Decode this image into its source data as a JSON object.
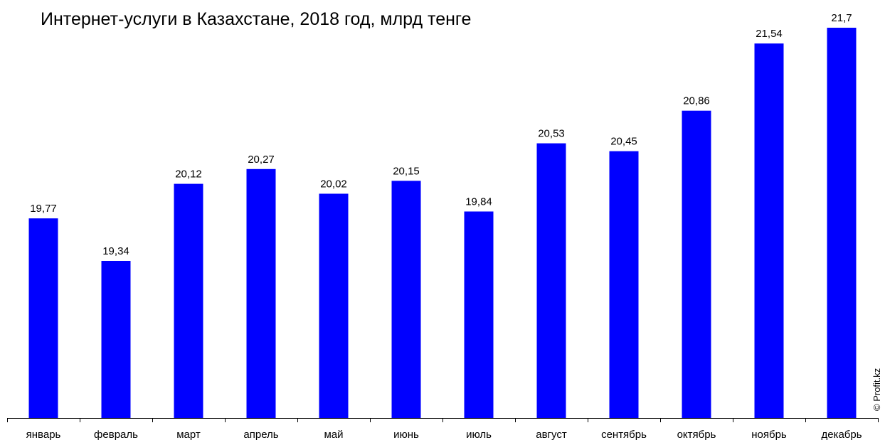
{
  "chart_data": {
    "type": "bar",
    "title": "Интернет-услуги в Казахстане, 2018 год, млрд тенге",
    "categories": [
      "январь",
      "февраль",
      "март",
      "апрель",
      "май",
      "июнь",
      "июль",
      "август",
      "сентябрь",
      "октябрь",
      "ноябрь",
      "декабрь"
    ],
    "values": [
      19.77,
      19.34,
      20.12,
      20.27,
      20.02,
      20.15,
      19.84,
      20.53,
      20.45,
      20.86,
      21.54,
      21.7
    ],
    "value_labels": [
      "19,77",
      "19,34",
      "20,12",
      "20,27",
      "20,02",
      "20,15",
      "19,84",
      "20,53",
      "20,45",
      "20,86",
      "21,54",
      "21,7"
    ],
    "xlabel": "",
    "ylabel": "",
    "ylim": [
      17.75,
      21.7
    ],
    "grid": false,
    "legend": "none",
    "bar_color": "#0000ff"
  },
  "credit": "© Profit.kz"
}
